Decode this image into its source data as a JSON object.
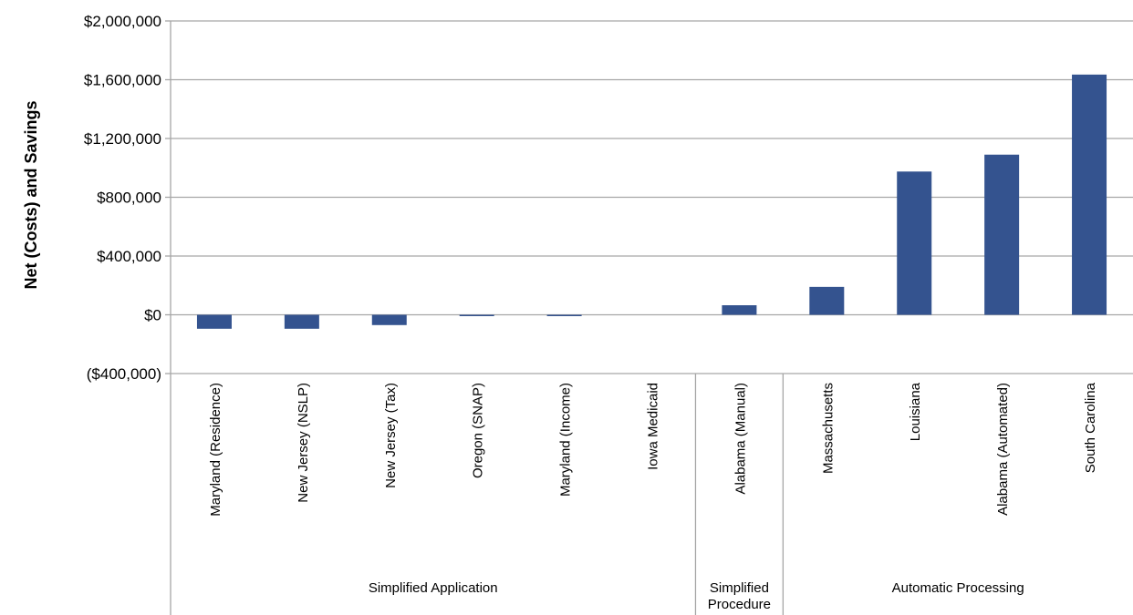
{
  "chart_data": {
    "type": "bar",
    "title": "",
    "xlabel": "",
    "ylabel": "Net (Costs) and Savings",
    "ylim": [
      -400000,
      2000000
    ],
    "yticks": [
      -400000,
      0,
      400000,
      800000,
      1200000,
      1600000,
      2000000
    ],
    "ytick_labels": [
      "($400,000)",
      "$0",
      "$400,000",
      "$800,000",
      "$1,200,000",
      "$1,600,000",
      "$2,000,000"
    ],
    "grid": true,
    "bar_color": "#34538F",
    "categories": [
      "Maryland (Residence)",
      "New Jersey (NSLP)",
      "New Jersey (Tax)",
      "Oregon (SNAP)",
      "Maryland (Income)",
      "Iowa Medicaid",
      "Alabama (Manual)",
      "Massachusetts",
      "Louisiana",
      "Alabama (Automated)",
      "South Carolina"
    ],
    "values": [
      -95000,
      -95000,
      -70000,
      -8000,
      -8000,
      0,
      65000,
      190000,
      975000,
      1090000,
      1635000
    ],
    "groups": [
      {
        "label": "Simplified Application",
        "count": 6
      },
      {
        "label": "Simplified Procedure",
        "count": 1
      },
      {
        "label": "Automatic Processing",
        "count": 4
      }
    ]
  }
}
